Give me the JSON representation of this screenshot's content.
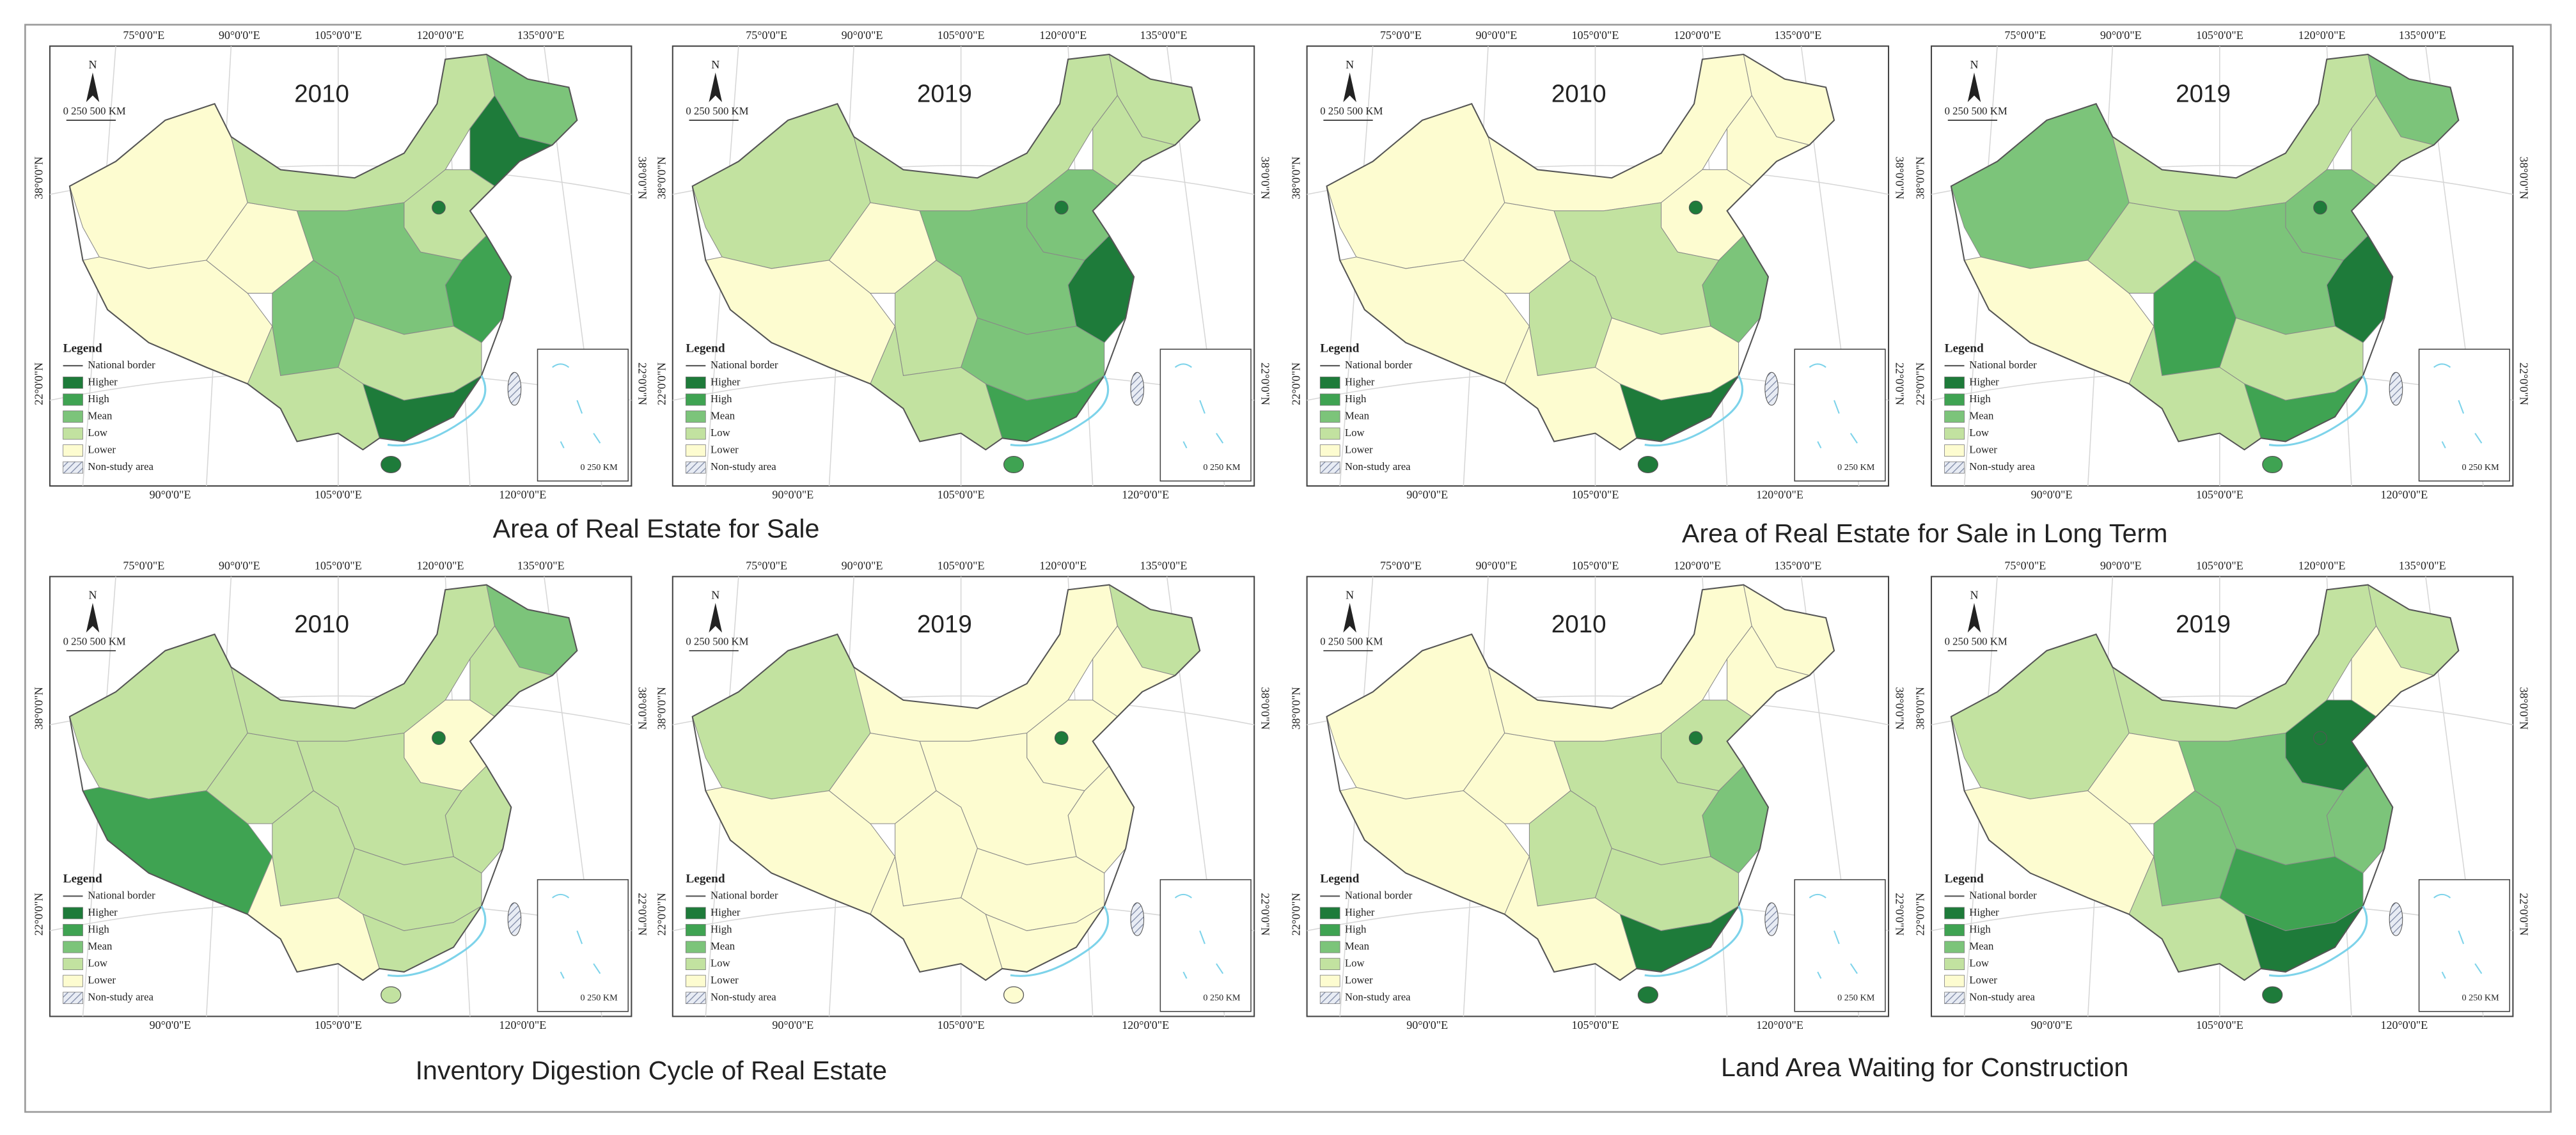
{
  "groups": [
    {
      "title": "Area of Real Estate for Sale",
      "panels": [
        {
          "year": "2010"
        },
        {
          "year": "2019"
        }
      ]
    },
    {
      "title": "Area of Real Estate for Sale in Long Term",
      "panels": [
        {
          "year": "2010"
        },
        {
          "year": "2019"
        }
      ]
    },
    {
      "title": "Inventory Digestion Cycle of  Real Estate",
      "panels": [
        {
          "year": "2010"
        },
        {
          "year": "2019"
        }
      ]
    },
    {
      "title": "Land Area Waiting for Construction",
      "panels": [
        {
          "year": "2010"
        },
        {
          "year": "2019"
        }
      ]
    }
  ],
  "map": {
    "north": "N",
    "scale": "0  250  500 KM",
    "legend_title": "Legend",
    "legend_items": [
      "National border",
      "Higher",
      "High",
      "Mean",
      "Low",
      "Lower",
      "Non-study area"
    ],
    "top_lon": [
      "75°0'0\"E",
      "90°0'0\"E",
      "105°0'0\"E",
      "120°0'0\"E",
      "135°0'0\"E"
    ],
    "bottom_lon": [
      "90°0'0\"E",
      "105°0'0\"E",
      "120°0'0\"E"
    ],
    "lat": [
      "38°0'0\"N",
      "22°0'0\"N"
    ],
    "inset_scale": "0  250 KM"
  }
}
